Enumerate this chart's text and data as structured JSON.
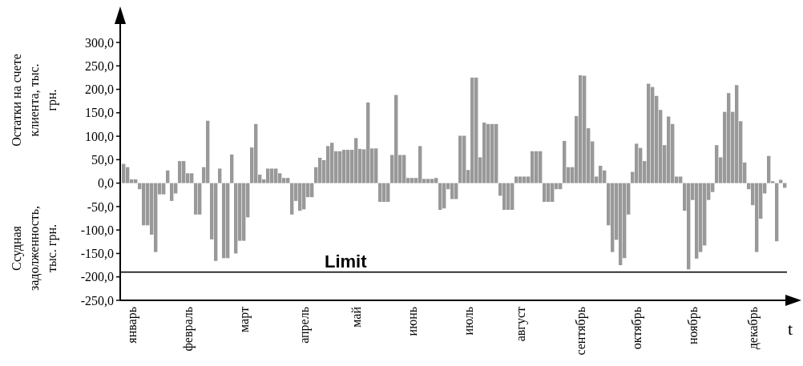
{
  "chart_data": {
    "type": "bar",
    "ylabel": "Остатки на счете клиента, тыс. грн.",
    "xlabel": "t",
    "annotations": [
      "Ссудная задолженность, тыс. грн."
    ],
    "categories": [
      null,
      null,
      "январь",
      null,
      null,
      null,
      null,
      null,
      null,
      null,
      null,
      null,
      null,
      null,
      null,
      null,
      "февраль",
      null,
      null,
      null,
      null,
      null,
      null,
      null,
      null,
      null,
      null,
      null,
      null,
      null,
      "март",
      null,
      null,
      null,
      null,
      null,
      null,
      null,
      null,
      null,
      null,
      null,
      null,
      null,
      null,
      "апрель",
      null,
      null,
      null,
      null,
      null,
      null,
      null,
      null,
      null,
      null,
      null,
      null,
      "май",
      null,
      null,
      null,
      null,
      null,
      null,
      null,
      null,
      null,
      null,
      null,
      null,
      null,
      "июнь",
      null,
      null,
      null,
      null,
      null,
      null,
      null,
      null,
      null,
      null,
      null,
      null,
      null,
      "июль",
      null,
      null,
      null,
      null,
      null,
      null,
      null,
      null,
      null,
      null,
      null,
      null,
      "август",
      null,
      null,
      null,
      null,
      null,
      null,
      null,
      null,
      null,
      null,
      null,
      null,
      null,
      null,
      "сентябрь",
      null,
      null,
      null,
      null,
      null,
      null,
      null,
      null,
      null,
      null,
      null,
      null,
      null,
      "октябрь",
      null,
      null,
      null,
      null,
      null,
      null,
      null,
      null,
      null,
      null,
      null,
      null,
      null,
      "ноябрь",
      null,
      null,
      null,
      null,
      null,
      null,
      null,
      null,
      null,
      null,
      null,
      null,
      null,
      null,
      "декабрь",
      null,
      null,
      null,
      null,
      null,
      null,
      null,
      null
    ],
    "values": [
      41,
      34,
      8,
      8,
      -13,
      -90,
      -90,
      -110,
      -147,
      -24,
      -24,
      27,
      -38,
      -22,
      47,
      47,
      21,
      21,
      -67,
      -67,
      34,
      133,
      -120,
      -166,
      31,
      -160,
      -160,
      61,
      -150,
      -123,
      -123,
      -73,
      76,
      126,
      18,
      8,
      31,
      31,
      31,
      21,
      11,
      11,
      -67,
      -38,
      -59,
      -56,
      -30,
      -30,
      34,
      54,
      49,
      79,
      86,
      68,
      68,
      71,
      71,
      71,
      96,
      73,
      72,
      172,
      74,
      74,
      -40,
      -40,
      -40,
      60,
      188,
      60,
      60,
      11,
      11,
      11,
      79,
      9,
      9,
      9,
      11,
      -57,
      -54,
      -13,
      -34,
      -34,
      101,
      101,
      28,
      225,
      225,
      55,
      129,
      126,
      126,
      126,
      -27,
      -57,
      -57,
      -57,
      14,
      14,
      14,
      14,
      68,
      68,
      68,
      -40,
      -40,
      -40,
      -13,
      -13,
      90,
      34,
      34,
      143,
      230,
      229,
      117,
      89,
      14,
      37,
      27,
      -90,
      -147,
      -121,
      -175,
      -160,
      -67,
      24,
      84,
      75,
      47,
      212,
      205,
      186,
      156,
      81,
      142,
      126,
      14,
      14,
      -59,
      -184,
      -36,
      -161,
      -147,
      -133,
      -36,
      -19,
      81,
      55,
      152,
      192,
      152,
      209,
      132,
      44,
      -13,
      -47,
      -147,
      -76,
      -22,
      58,
      4,
      -124,
      7,
      -10
    ],
    "color": "#999999",
    "ylim": [
      -250,
      300
    ],
    "yticks": [
      {
        "value": 300,
        "label": "300,0"
      },
      {
        "value": 250,
        "label": "250,0"
      },
      {
        "value": 200,
        "label": "200,0"
      },
      {
        "value": 150,
        "label": "150,0"
      },
      {
        "value": 100,
        "label": "100,0"
      },
      {
        "value": 50,
        "label": "50,0"
      },
      {
        "value": 0,
        "label": "0,0"
      },
      {
        "value": -50,
        "label": "-50,0"
      },
      {
        "value": -100,
        "label": "-100,0"
      },
      {
        "value": -150,
        "label": "-150,0"
      },
      {
        "value": -200,
        "label": "-200,0"
      },
      {
        "value": -250,
        "label": "-250,0"
      }
    ],
    "ref_lines": [
      {
        "axis": "y",
        "value": -190,
        "label": "Limit",
        "color": "#000000"
      }
    ],
    "grid": false
  }
}
